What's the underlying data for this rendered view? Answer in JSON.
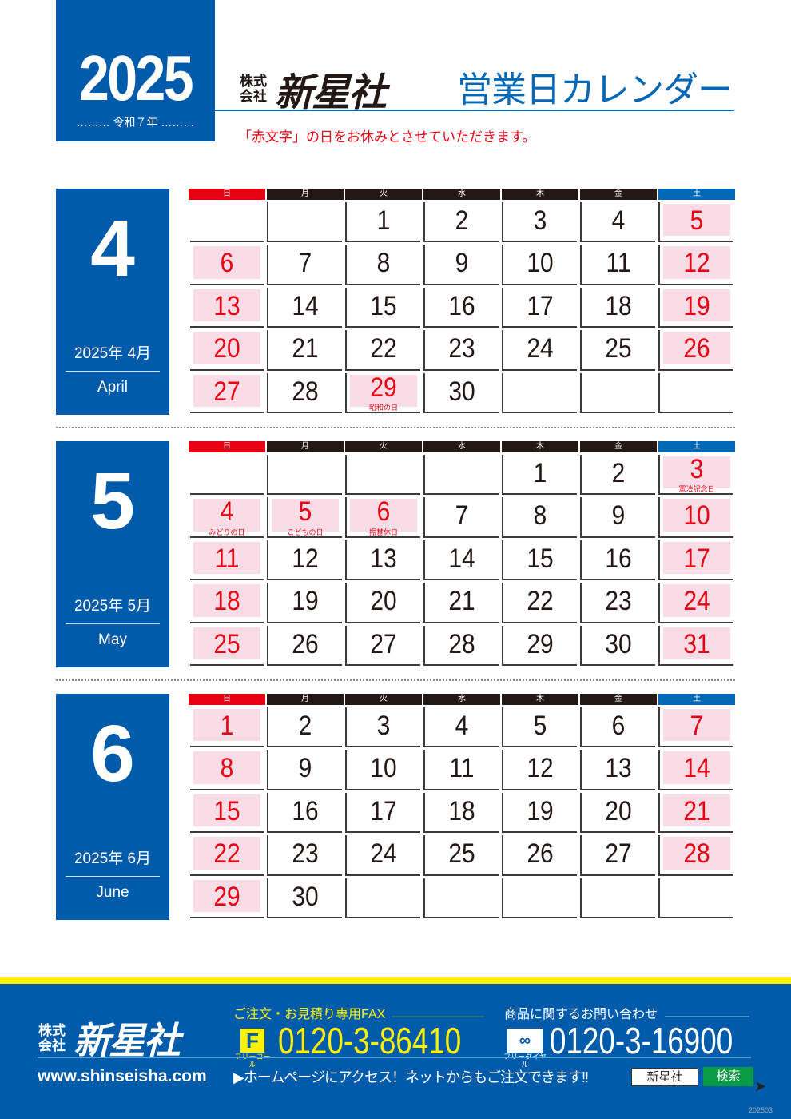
{
  "header": {
    "year": "2025",
    "era": "……… 令和７年 ………",
    "logo_small": "株式会社",
    "logo_name": "新星社",
    "title": "営業日カレンダー",
    "note": "「赤文字」の日をお休みとさせていただきます。"
  },
  "weekdays": [
    "日",
    "月",
    "火",
    "水",
    "木",
    "金",
    "土"
  ],
  "colors": {
    "brand_blue": "#005bab",
    "holiday_red": "#e60012",
    "holiday_pink": "#fadce6",
    "footer_yellow": "#fff100",
    "search_green": "#0a9b46"
  },
  "months": [
    {
      "num": "4",
      "jp": "2025年 4月",
      "en": "April",
      "weeks": [
        [
          null,
          null,
          1,
          2,
          3,
          4,
          5
        ],
        [
          6,
          7,
          8,
          9,
          10,
          11,
          12
        ],
        [
          13,
          14,
          15,
          16,
          17,
          18,
          19
        ],
        [
          20,
          21,
          22,
          23,
          24,
          25,
          26
        ],
        [
          27,
          28,
          29,
          30,
          null,
          null,
          null
        ]
      ],
      "red_extra": [
        29
      ],
      "notes": {
        "29": "昭和の日"
      }
    },
    {
      "num": "5",
      "jp": "2025年 5月",
      "en": "May",
      "weeks": [
        [
          null,
          null,
          null,
          null,
          1,
          2,
          3
        ],
        [
          4,
          5,
          6,
          7,
          8,
          9,
          10
        ],
        [
          11,
          12,
          13,
          14,
          15,
          16,
          17
        ],
        [
          18,
          19,
          20,
          21,
          22,
          23,
          24
        ],
        [
          25,
          26,
          27,
          28,
          29,
          30,
          31
        ]
      ],
      "red_extra": [
        4,
        5,
        6
      ],
      "notes": {
        "3": "憲法記念日",
        "4": "みどりの日",
        "5": "こどもの日",
        "6": "振替休日"
      }
    },
    {
      "num": "6",
      "jp": "2025年 6月",
      "en": "June",
      "weeks": [
        [
          1,
          2,
          3,
          4,
          5,
          6,
          7
        ],
        [
          8,
          9,
          10,
          11,
          12,
          13,
          14
        ],
        [
          15,
          16,
          17,
          18,
          19,
          20,
          21
        ],
        [
          22,
          23,
          24,
          25,
          26,
          27,
          28
        ],
        [
          29,
          30,
          null,
          null,
          null,
          null,
          null
        ]
      ],
      "red_extra": [],
      "notes": {}
    }
  ],
  "footer": {
    "logo_small": "株式会社",
    "logo_name": "新星社",
    "fax_label": "ご注文・お見積り専用FAX",
    "fax_icon_label": "フリーコール",
    "fax_number": "0120-3-86410",
    "inquiry_label": "商品に関するお問い合わせ",
    "tel_icon_label": "フリーダイヤル",
    "tel_number": "0120-3-16900",
    "url": "www.shinseisha.com",
    "access": "▶ホームページにアクセス！ネットからもご注文できます!!",
    "search_value": "新星社",
    "search_button": "検索",
    "code": "202503"
  }
}
